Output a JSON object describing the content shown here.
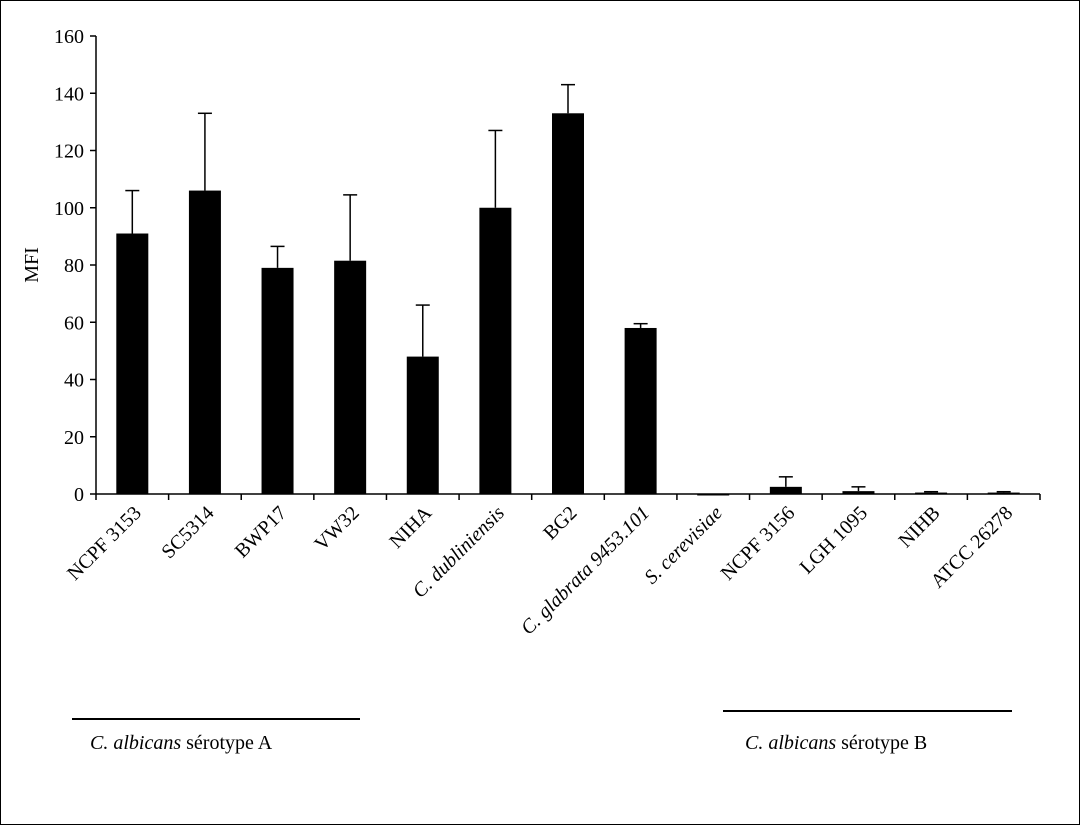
{
  "chart_data": {
    "type": "bar",
    "ylabel": "MFI",
    "xlabel": "",
    "ylim": [
      0,
      160
    ],
    "yticks": [
      0,
      20,
      40,
      60,
      80,
      100,
      120,
      140,
      160
    ],
    "grid": false,
    "legend": false,
    "bar_color": "#000000",
    "categories": [
      "NCPF 3153",
      "SC5314",
      "BWP17",
      "VW32",
      "NIHA",
      "C. dubliniensis",
      "BG2",
      "C. glabrata 9453.101",
      "S. cerevisiae",
      "NCPF 3156",
      "LGH 1095",
      "NIHB",
      "ATCC 26278"
    ],
    "values": [
      91,
      106,
      79,
      81.5,
      48,
      100,
      133,
      58,
      0,
      2.5,
      1,
      0.5,
      0.5
    ],
    "error": [
      15,
      27,
      7.5,
      23,
      18,
      27,
      10,
      1.5,
      0,
      3.5,
      1.5,
      0.3,
      0.3
    ]
  },
  "groups": [
    {
      "italic": "C. albicans",
      "rest": " sérotype A"
    },
    {
      "italic": "C. albicans",
      "rest": " sérotype B"
    }
  ]
}
